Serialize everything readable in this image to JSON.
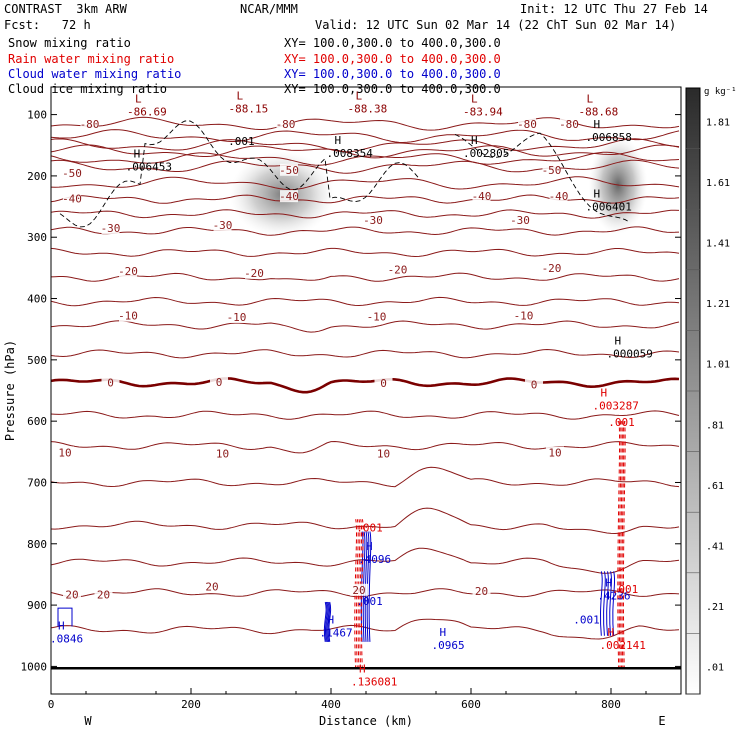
{
  "header": {
    "model": "CONTRAST  3km ARW",
    "center": "NCAR/MMM",
    "init": "Init: 12 UTC Thu 27 Feb 14",
    "fcst": "Fcst:   72 h",
    "valid": "Valid: 12 UTC Sun 02 Mar 14 (22 ChT Sun 02 Mar 14)"
  },
  "fields": [
    {
      "name": "Snow mixing ratio",
      "xy": "XY= 100.0,300.0 to 400.0,300.0",
      "color": "#000000"
    },
    {
      "name": "Rain water mixing ratio",
      "xy": "XY= 100.0,300.0 to 400.0,300.0",
      "color": "#e00000"
    },
    {
      "name": "Cloud water mixing ratio",
      "xy": "XY= 100.0,300.0 to 400.0,300.0",
      "color": "#0000cc"
    },
    {
      "name": "Cloud ice mixing ratio",
      "xy": "XY= 100.0,300.0 to 400.0,300.0",
      "color": "#000000"
    }
  ],
  "chart_data": {
    "type": "cross-section contour",
    "xlabel": "Distance (km)",
    "ylabel": "Pressure (hPa)",
    "xlim": [
      0,
      900
    ],
    "ylim": [
      1045,
      55
    ],
    "x_ticks": [
      0,
      200,
      400,
      600,
      800
    ],
    "y_ticks": [
      100,
      200,
      300,
      400,
      500,
      600,
      700,
      800,
      900,
      1000
    ],
    "west_label": "W",
    "east_label": "E",
    "temperature_contours": [
      {
        "label": "-80",
        "p": 115
      },
      {
        "label": "-70",
        "p": 135
      },
      {
        "label": "-60",
        "p": 160
      },
      {
        "label": "-50",
        "p": 185
      },
      {
        "label": "-40",
        "p": 238
      },
      {
        "label": "-30",
        "p": 290
      },
      {
        "label": "-20",
        "p": 365
      },
      {
        "label": "-10",
        "p": 443
      },
      {
        "label": "0",
        "p": 537
      },
      {
        "label": "10",
        "p": 640
      },
      {
        "label": "20",
        "p": 880
      }
    ],
    "temperature_labels": [
      {
        "text": "-80",
        "x": 55,
        "p": 115
      },
      {
        "text": "-80",
        "x": 335,
        "p": 115
      },
      {
        "text": "-80",
        "x": 680,
        "p": 115
      },
      {
        "text": "-80",
        "x": 740,
        "p": 115
      },
      {
        "text": "-50",
        "x": 30,
        "p": 195
      },
      {
        "text": "-50",
        "x": 340,
        "p": 190
      },
      {
        "text": "-50",
        "x": 715,
        "p": 190
      },
      {
        "text": "-40",
        "x": 30,
        "p": 237
      },
      {
        "text": "-40",
        "x": 340,
        "p": 233
      },
      {
        "text": "-40",
        "x": 615,
        "p": 233
      },
      {
        "text": "-40",
        "x": 725,
        "p": 233
      },
      {
        "text": "-30",
        "x": 85,
        "p": 285
      },
      {
        "text": "-30",
        "x": 245,
        "p": 280
      },
      {
        "text": "-30",
        "x": 460,
        "p": 272
      },
      {
        "text": "-30",
        "x": 670,
        "p": 272
      },
      {
        "text": "-20",
        "x": 110,
        "p": 355
      },
      {
        "text": "-20",
        "x": 290,
        "p": 358
      },
      {
        "text": "-20",
        "x": 495,
        "p": 353
      },
      {
        "text": "-20",
        "x": 715,
        "p": 350
      },
      {
        "text": "-10",
        "x": 110,
        "p": 428
      },
      {
        "text": "-10",
        "x": 265,
        "p": 430
      },
      {
        "text": "-10",
        "x": 465,
        "p": 429
      },
      {
        "text": "-10",
        "x": 675,
        "p": 428
      },
      {
        "text": "0",
        "x": 85,
        "p": 537
      },
      {
        "text": "0",
        "x": 240,
        "p": 536
      },
      {
        "text": "0",
        "x": 475,
        "p": 538
      },
      {
        "text": "0",
        "x": 690,
        "p": 540
      },
      {
        "text": "10",
        "x": 20,
        "p": 651
      },
      {
        "text": "10",
        "x": 245,
        "p": 653
      },
      {
        "text": "10",
        "x": 475,
        "p": 653
      },
      {
        "text": "10",
        "x": 720,
        "p": 651
      },
      {
        "text": "20",
        "x": 30,
        "p": 883
      },
      {
        "text": "20",
        "x": 75,
        "p": 883
      },
      {
        "text": "20",
        "x": 230,
        "p": 870
      },
      {
        "text": "20",
        "x": 440,
        "p": 875
      },
      {
        "text": "20",
        "x": 615,
        "p": 877
      }
    ],
    "extrema": [
      {
        "kind": "L",
        "value": "-86.69",
        "x": 120,
        "p": 80,
        "color": "#8b0000"
      },
      {
        "kind": "L",
        "value": "-88.15",
        "x": 265,
        "p": 75,
        "color": "#8b0000"
      },
      {
        "kind": "L",
        "value": "-88.38",
        "x": 435,
        "p": 75,
        "color": "#8b0000"
      },
      {
        "kind": "L",
        "value": "-83.94",
        "x": 600,
        "p": 80,
        "color": "#8b0000"
      },
      {
        "kind": "L",
        "value": "-88.68",
        "x": 765,
        "p": 80,
        "color": "#8b0000"
      },
      {
        "kind": "H",
        "value": ".006453",
        "x": 118,
        "p": 170,
        "color": "#000000"
      },
      {
        "kind": "H",
        "value": ".008354",
        "x": 405,
        "p": 148,
        "color": "#000000"
      },
      {
        "kind": "H",
        "value": ".002805",
        "x": 600,
        "p": 148,
        "color": "#000000"
      },
      {
        "kind": "H",
        "value": ".006858",
        "x": 775,
        "p": 122,
        "color": "#000000"
      },
      {
        "kind": "H",
        "value": ".006401",
        "x": 775,
        "p": 235,
        "color": "#000000"
      },
      {
        "kind": "H",
        "value": ".000059",
        "x": 805,
        "p": 475,
        "color": "#000000"
      },
      {
        "kind": "H",
        "value": ".003287",
        "x": 785,
        "p": 560,
        "color": "#e00000"
      },
      {
        "kind": "H",
        "value": ".4096",
        "x": 450,
        "p": 810,
        "color": "#0000cc"
      },
      {
        "kind": "H",
        "value": ".4236",
        "x": 792,
        "p": 870,
        "color": "#0000cc"
      },
      {
        "kind": "H",
        "value": ".0846",
        "x": 10,
        "p": 940,
        "color": "#0000cc"
      },
      {
        "kind": "H",
        "value": ".1467",
        "x": 395,
        "p": 930,
        "color": "#0000cc"
      },
      {
        "kind": "H",
        "value": ".0965",
        "x": 555,
        "p": 950,
        "color": "#0000cc"
      },
      {
        "kind": "H",
        "value": ".136081",
        "x": 440,
        "p": 1010,
        "color": "#e00000"
      },
      {
        "kind": "H",
        "value": ".002141",
        "x": 795,
        "p": 950,
        "color": "#e00000"
      }
    ],
    "contour_labels": [
      {
        "text": ".001",
        "x": 272,
        "p": 150,
        "color": "#000000"
      },
      {
        "text": ".001",
        "x": 815,
        "p": 608,
        "color": "#e00000"
      },
      {
        "text": ".001",
        "x": 455,
        "p": 780,
        "color": "#e00000"
      },
      {
        "text": ".001",
        "x": 455,
        "p": 900,
        "color": "#0000cc"
      },
      {
        "text": ".001",
        "x": 820,
        "p": 880,
        "color": "#e00000"
      },
      {
        "text": ".001",
        "x": 765,
        "p": 930,
        "color": "#0000cc"
      }
    ],
    "snow_shading": [
      {
        "x": 330,
        "p": 230,
        "rx_km": 75,
        "ry_hpa": 70,
        "intensity": 0.5
      },
      {
        "x": 810,
        "p": 215,
        "rx_km": 42,
        "ry_hpa": 80,
        "intensity": 0.65
      }
    ],
    "colorbar": {
      "unit": "g kg⁻¹",
      "labels": [
        "1.81",
        "1.61",
        "1.41",
        "1.21",
        "1.01",
        ".81",
        ".61",
        ".41",
        ".21",
        ".01"
      ]
    }
  }
}
